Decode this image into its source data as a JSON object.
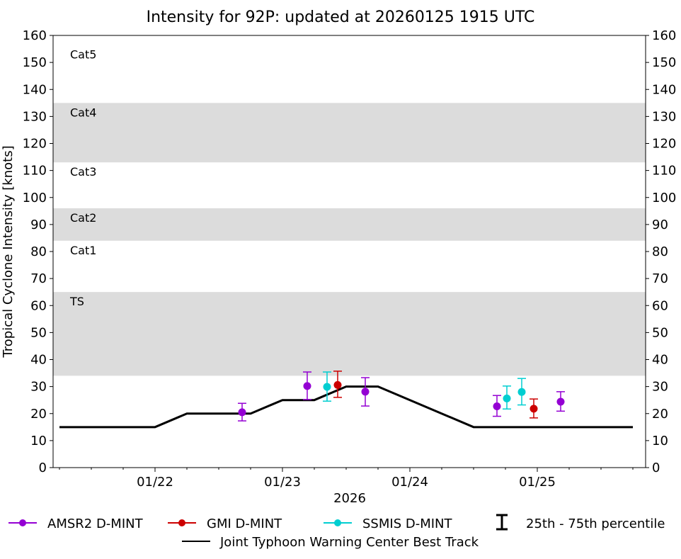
{
  "chart_data": {
    "type": "scatter",
    "title": "Intensity for 92P: updated at 20260125 1915 UTC",
    "xlabel": "2026",
    "ylabel": "Tropical Cyclone Intensity [knots]",
    "ylim": [
      0,
      160
    ],
    "xlim": [
      "2026-01-21T04:48",
      "2026-01-25T20:24"
    ],
    "yticks": [
      0,
      10,
      20,
      30,
      40,
      50,
      60,
      70,
      80,
      90,
      100,
      110,
      120,
      130,
      140,
      150,
      160
    ],
    "xticks": [
      {
        "label": "01/22",
        "date": "2026-01-22T00:00"
      },
      {
        "label": "01/23",
        "date": "2026-01-23T00:00"
      },
      {
        "label": "01/24",
        "date": "2026-01-24T00:00"
      },
      {
        "label": "01/25",
        "date": "2026-01-25T00:00"
      }
    ],
    "grid": false,
    "categories": [
      {
        "label": "TS",
        "range": [
          34,
          65
        ],
        "shaded": true
      },
      {
        "label": "Cat1",
        "range": [
          65,
          84
        ],
        "shaded": false
      },
      {
        "label": "Cat2",
        "range": [
          84,
          96
        ],
        "shaded": true
      },
      {
        "label": "Cat3",
        "range": [
          96,
          113
        ],
        "shaded": false
      },
      {
        "label": "Cat4",
        "range": [
          113,
          135
        ],
        "shaded": true
      },
      {
        "label": "Cat5",
        "range": [
          135,
          160
        ],
        "shaded": false
      }
    ],
    "band_color": "#dcdcdc",
    "best_track": {
      "name": "Joint Typhoon Warning Center Best Track",
      "color": "#000000",
      "points": [
        {
          "x": "2026-01-21T06:00",
          "y": 15
        },
        {
          "x": "2026-01-22T00:00",
          "y": 15
        },
        {
          "x": "2026-01-22T06:00",
          "y": 20
        },
        {
          "x": "2026-01-22T18:00",
          "y": 20
        },
        {
          "x": "2026-01-23T00:00",
          "y": 25
        },
        {
          "x": "2026-01-23T06:00",
          "y": 25
        },
        {
          "x": "2026-01-23T12:00",
          "y": 30
        },
        {
          "x": "2026-01-23T18:00",
          "y": 30
        },
        {
          "x": "2026-01-24T12:00",
          "y": 15
        },
        {
          "x": "2026-01-25T18:00",
          "y": 15
        }
      ]
    },
    "series": [
      {
        "name": "AMSR2 D-MINT",
        "color": "#9400d3",
        "points": [
          {
            "x": "2026-01-22T16:24",
            "y": 20.5,
            "p25": 17.3,
            "p75": 23.8
          },
          {
            "x": "2026-01-23T04:40",
            "y": 30.2,
            "p25": 25.2,
            "p75": 35.4
          },
          {
            "x": "2026-01-23T15:36",
            "y": 28.1,
            "p25": 22.8,
            "p75": 33.3
          },
          {
            "x": "2026-01-24T16:24",
            "y": 22.7,
            "p25": 19.0,
            "p75": 26.7
          },
          {
            "x": "2026-01-25T04:24",
            "y": 24.4,
            "p25": 20.9,
            "p75": 28.1
          }
        ]
      },
      {
        "name": "GMI D-MINT",
        "color": "#cc0000",
        "points": [
          {
            "x": "2026-01-23T10:24",
            "y": 30.6,
            "p25": 26.0,
            "p75": 35.7
          },
          {
            "x": "2026-01-24T23:20",
            "y": 21.8,
            "p25": 18.4,
            "p75": 25.4
          }
        ]
      },
      {
        "name": "SSMIS D-MINT",
        "color": "#00ced1",
        "points": [
          {
            "x": "2026-01-23T08:24",
            "y": 29.9,
            "p25": 24.6,
            "p75": 35.4
          },
          {
            "x": "2026-01-24T18:16",
            "y": 25.6,
            "p25": 21.7,
            "p75": 30.2
          },
          {
            "x": "2026-01-24T21:04",
            "y": 28.0,
            "p25": 23.2,
            "p75": 33.0
          }
        ]
      }
    ],
    "legend": {
      "placement": "bottom",
      "percentile_label": "25th - 75th percentile"
    }
  }
}
